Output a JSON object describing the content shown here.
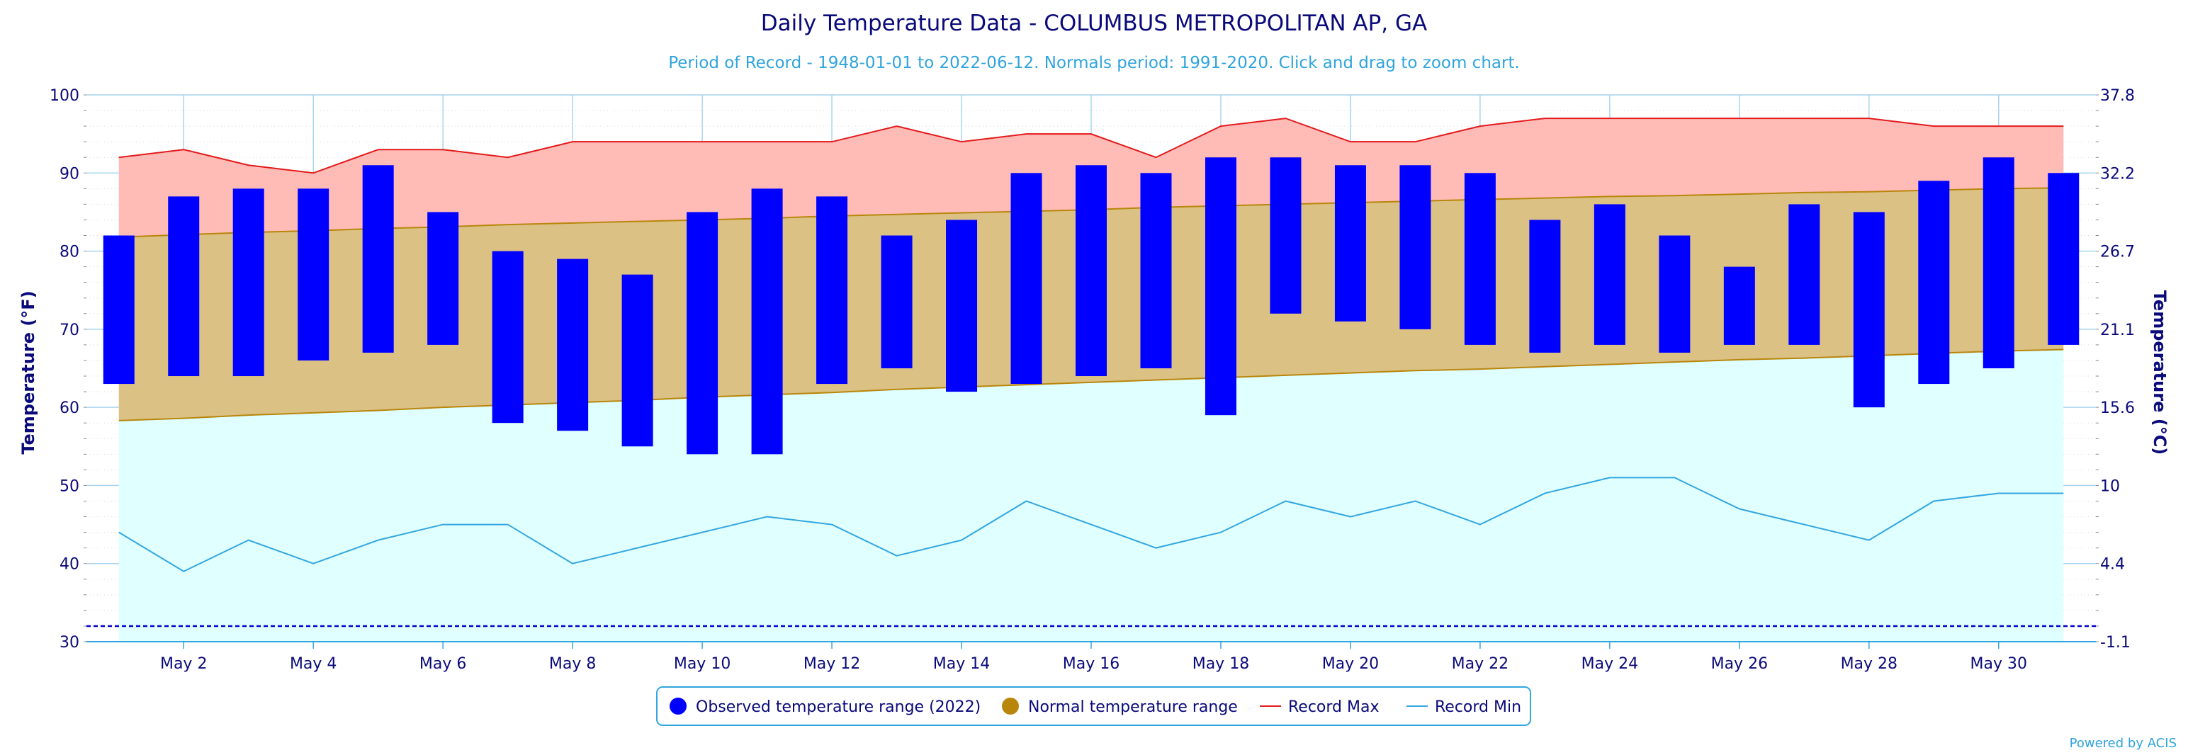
{
  "chart_data": {
    "type": "bar",
    "title": "Daily Temperature Data - COLUMBUS METROPOLITAN AP, GA",
    "subtitle": "Period of Record - 1948-01-01 to 2022-06-12. Normals period: 1991-2020. Click and drag to zoom chart.",
    "ylabel": "Temperature (°F)",
    "y2label": "Temperature (°C)",
    "ylim": [
      30,
      100
    ],
    "yticks": [
      30,
      40,
      50,
      60,
      70,
      80,
      90,
      100
    ],
    "y2ticks": [
      "-1.1",
      "4.4",
      "10",
      "15.6",
      "21.1",
      "26.7",
      "32.2",
      "37.8"
    ],
    "freezing_line": 32,
    "grid": true,
    "legend_position": "bottom",
    "x": [
      1,
      2,
      3,
      4,
      5,
      6,
      7,
      8,
      9,
      10,
      11,
      12,
      13,
      14,
      15,
      16,
      17,
      18,
      19,
      20,
      21,
      22,
      23,
      24,
      25,
      26,
      27,
      28,
      29,
      30,
      31
    ],
    "xtick_labels": [
      "May 2",
      "May 4",
      "May 6",
      "May 8",
      "May 10",
      "May 12",
      "May 14",
      "May 16",
      "May 18",
      "May 20",
      "May 22",
      "May 24",
      "May 26",
      "May 28",
      "May 30"
    ],
    "xtick_days": [
      2,
      4,
      6,
      8,
      10,
      12,
      14,
      16,
      18,
      20,
      22,
      24,
      26,
      28,
      30
    ],
    "series": [
      {
        "name": "Observed temperature range (2022)",
        "color": "#0000ff",
        "high": [
          82,
          87,
          88,
          88,
          91,
          85,
          80,
          79,
          77,
          85,
          88,
          87,
          82,
          84,
          90,
          91,
          90,
          92,
          92,
          91,
          91,
          90,
          84,
          86,
          82,
          78,
          86,
          85,
          89,
          92,
          90
        ],
        "low": [
          63,
          64,
          64,
          66,
          67,
          68,
          58,
          57,
          55,
          54,
          54,
          63,
          65,
          62,
          63,
          64,
          65,
          59,
          72,
          71,
          70,
          68,
          67,
          68,
          67,
          68,
          68,
          60,
          63,
          65,
          68
        ]
      },
      {
        "name": "Normal temperature range",
        "color": "#b8860b",
        "fill": "#dcc185",
        "high": [
          81.8,
          82.1,
          82.4,
          82.6,
          82.9,
          83.1,
          83.4,
          83.6,
          83.8,
          84.0,
          84.2,
          84.5,
          84.7,
          84.9,
          85.1,
          85.3,
          85.6,
          85.8,
          86.0,
          86.2,
          86.4,
          86.6,
          86.8,
          87.0,
          87.1,
          87.3,
          87.5,
          87.6,
          87.8,
          88.0,
          88.1
        ],
        "low": [
          58.3,
          58.6,
          59.0,
          59.3,
          59.6,
          60.0,
          60.3,
          60.6,
          60.9,
          61.3,
          61.6,
          61.9,
          62.3,
          62.6,
          62.9,
          63.2,
          63.5,
          63.8,
          64.1,
          64.4,
          64.7,
          64.9,
          65.2,
          65.5,
          65.8,
          66.1,
          66.3,
          66.6,
          66.9,
          67.2,
          67.4
        ]
      },
      {
        "name": "Record Max",
        "color": "#e31a1c",
        "fill": "#ffbcb6",
        "values": [
          92,
          93,
          91,
          90,
          93,
          93,
          92,
          94,
          94,
          94,
          94,
          94,
          96,
          94,
          95,
          95,
          92,
          96,
          97,
          94,
          94,
          96,
          97,
          97,
          97,
          97,
          97,
          97,
          96,
          96,
          96
        ]
      },
      {
        "name": "Record Min",
        "color": "#33a6e0",
        "fill": "#e0ffff",
        "values": [
          44,
          39,
          43,
          40,
          43,
          45,
          45,
          40,
          42,
          44,
          46,
          45,
          41,
          43,
          48,
          45,
          42,
          44,
          48,
          46,
          48,
          45,
          49,
          51,
          51,
          47,
          45,
          43,
          48,
          49,
          49
        ]
      }
    ],
    "credit": "Powered by ACIS"
  }
}
